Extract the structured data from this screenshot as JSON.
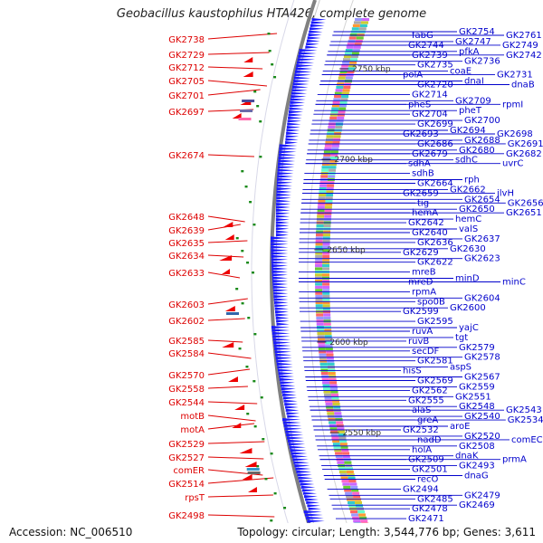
{
  "title": "Geobacillus kaustophilus HTA426, complete genome",
  "footer": {
    "accession": "Accession: NC_006510",
    "summary": "Topology: circular; Length: 3,544,776 bp; Genes: 3,611"
  },
  "colors": {
    "left_labels": "#dd0000",
    "right_labels": "#0000cc",
    "backbone": "#808080",
    "forward_genes": "#1a1aff",
    "rna_arrows": "#ee0000",
    "small_features": "#1a8a1a"
  },
  "ticks": [
    "2750 kbp",
    "2700 kbp",
    "2650 kbp",
    "2600 kbp",
    "2550 kbp"
  ],
  "left_labels": [
    "GK2738",
    "GK2729",
    "GK2712",
    "GK2705",
    "GK2701",
    "GK2697",
    "GK2674",
    "GK2648",
    "GK2639",
    "GK2635",
    "GK2634",
    "GK2633",
    "GK2603",
    "GK2602",
    "GK2585",
    "GK2584",
    "GK2570",
    "GK2558",
    "GK2544",
    "motB",
    "motA",
    "GK2529",
    "GK2527",
    "comER",
    "GK2514",
    "rpsT",
    "GK2498"
  ],
  "right_labels": [
    [
      "fabG",
      "GK2754",
      "GK2761"
    ],
    [
      "GK2744",
      "GK2747",
      "GK2749"
    ],
    [
      "GK2739",
      "pfkA",
      "GK2742"
    ],
    [
      "GK2735",
      "GK2736"
    ],
    [
      "polA",
      "coaE",
      "GK2731"
    ],
    [
      "GK2720",
      "dnaI",
      "dnaB"
    ],
    [
      "GK2714"
    ],
    [
      "pheS",
      "GK2709",
      "rpmI"
    ],
    [
      "GK2704",
      "pheT"
    ],
    [
      "GK2699",
      "GK2700"
    ],
    [
      "GK2693",
      "GK2694",
      "GK2698"
    ],
    [
      "GK2686",
      "GK2688",
      "GK2691"
    ],
    [
      "GK2679",
      "GK2680",
      "GK2682"
    ],
    [
      "sdhA",
      "sdhC",
      "uvrC"
    ],
    [
      "sdhB"
    ],
    [
      "GK2664",
      "rph"
    ],
    [
      "GK2659",
      "GK2662",
      "ilvH"
    ],
    [
      "tig",
      "GK2654",
      "GK2656"
    ],
    [
      "hemA",
      "GK2650",
      "GK2651"
    ],
    [
      "GK2642",
      "hemC"
    ],
    [
      "GK2640",
      "valS"
    ],
    [
      "GK2636",
      "GK2637"
    ],
    [
      "GK2629",
      "GK2630"
    ],
    [
      "GK2622",
      "GK2623"
    ],
    [
      "mreB"
    ],
    [
      "mreD",
      "minD",
      "minC"
    ],
    [
      "rpmA"
    ],
    [
      "spo0B",
      "GK2604"
    ],
    [
      "GK2599",
      "GK2600"
    ],
    [
      "GK2595"
    ],
    [
      "ruvA",
      "yajC"
    ],
    [
      "ruvB",
      "tgt"
    ],
    [
      "secDF",
      "GK2579"
    ],
    [
      "GK2581",
      "GK2578"
    ],
    [
      "hisS",
      "aspS"
    ],
    [
      "GK2569",
      "GK2567"
    ],
    [
      "GK2562",
      "GK2559"
    ],
    [
      "GK2555",
      "GK2551"
    ],
    [
      "alaS",
      "GK2548",
      "GK2543"
    ],
    [
      "greA",
      "GK2540",
      "GK2534"
    ],
    [
      "GK2532",
      "aroE"
    ],
    [
      "nadD",
      "GK2520",
      "comEC"
    ],
    [
      "holA",
      "GK2508"
    ],
    [
      "GK2509",
      "dnaK",
      "prmA"
    ],
    [
      "GK2501",
      "GK2493"
    ],
    [
      "recO",
      "dnaG"
    ],
    [
      "GK2494"
    ],
    [
      "GK2485",
      "GK2479"
    ],
    [
      "GK2478",
      "GK2469"
    ],
    [
      "GK2471"
    ]
  ]
}
